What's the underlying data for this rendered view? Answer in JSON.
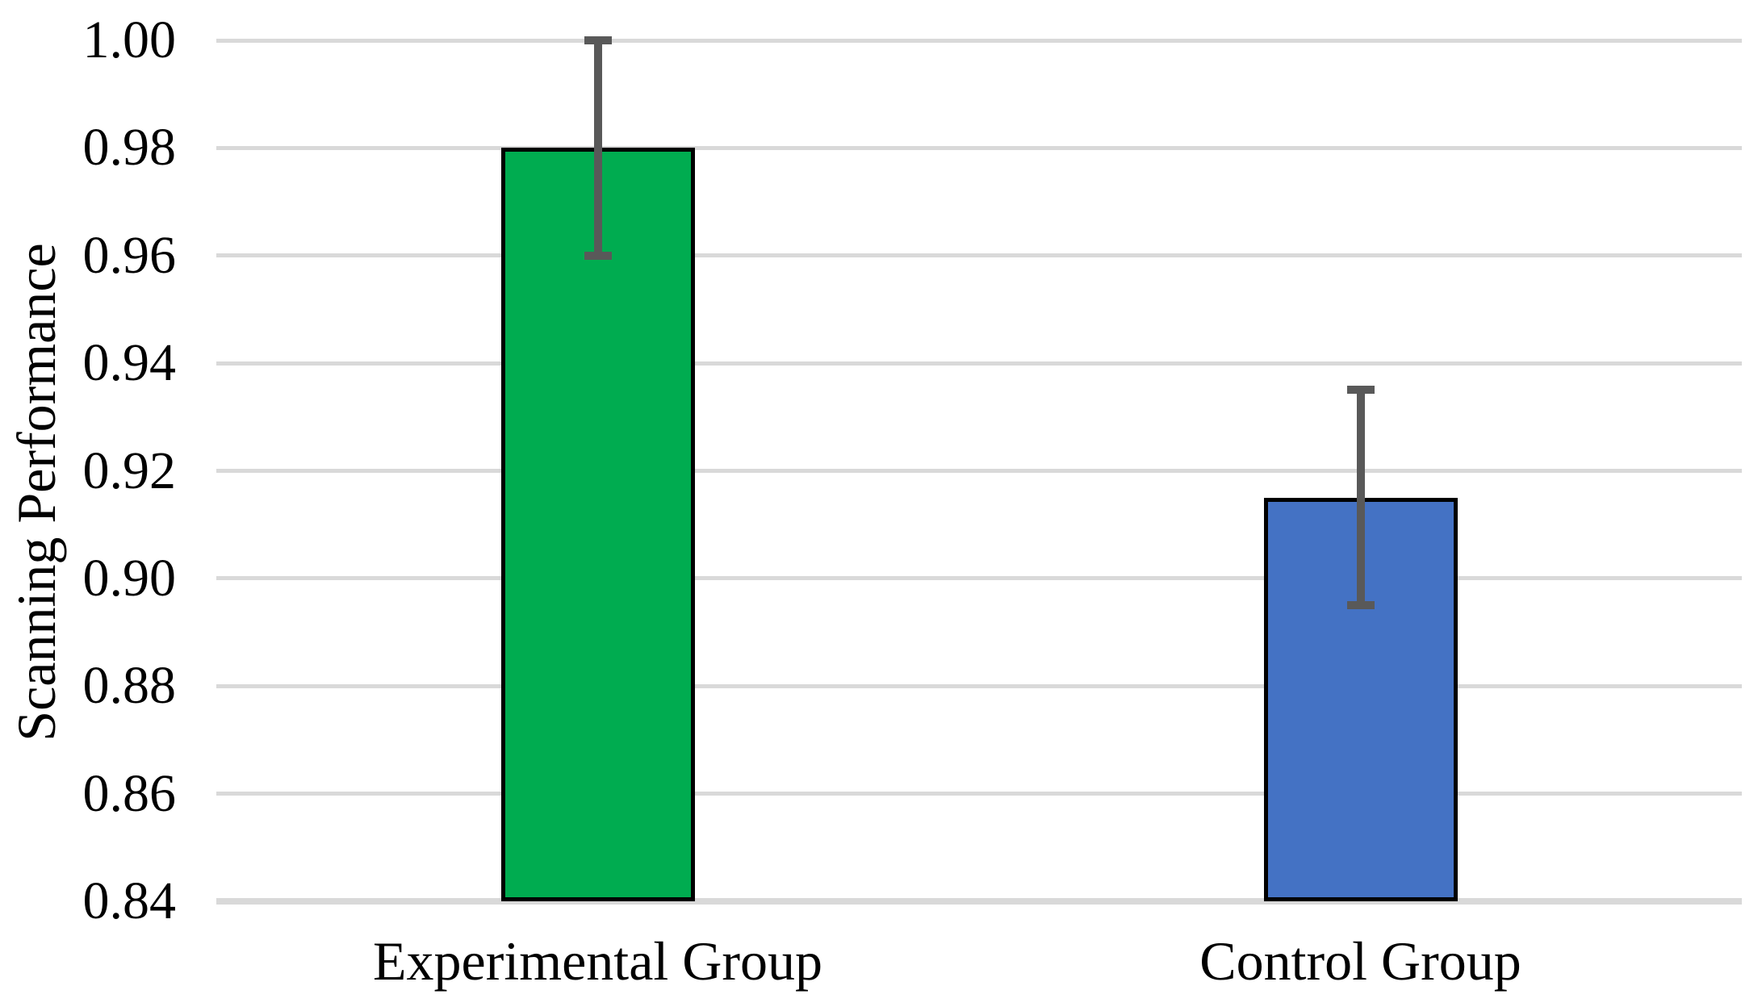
{
  "chart_data": {
    "type": "bar",
    "title": "",
    "xlabel": "",
    "ylabel": "Scanning Performance",
    "categories": [
      "Experimental Group",
      "Control Group"
    ],
    "values": [
      0.98,
      0.915
    ],
    "errors": [
      {
        "low": 0.96,
        "high": 1.0
      },
      {
        "low": 0.895,
        "high": 0.935
      }
    ],
    "ylim": [
      0.84,
      1.0
    ],
    "ytick_step": 0.02,
    "ytick_labels": [
      "0.84",
      "0.86",
      "0.88",
      "0.90",
      "0.92",
      "0.94",
      "0.96",
      "0.98",
      "1.00"
    ],
    "grid": "horizontal",
    "legend_position": "none",
    "colors": {
      "bars": [
        "#00AC50",
        "#4472C4"
      ],
      "bar_border": "#000000",
      "error_bar": "#595959",
      "gridline": "#D9D9D9",
      "axis_line": "#D9D9D9",
      "text": "#000000",
      "background": "#FFFFFF"
    }
  }
}
